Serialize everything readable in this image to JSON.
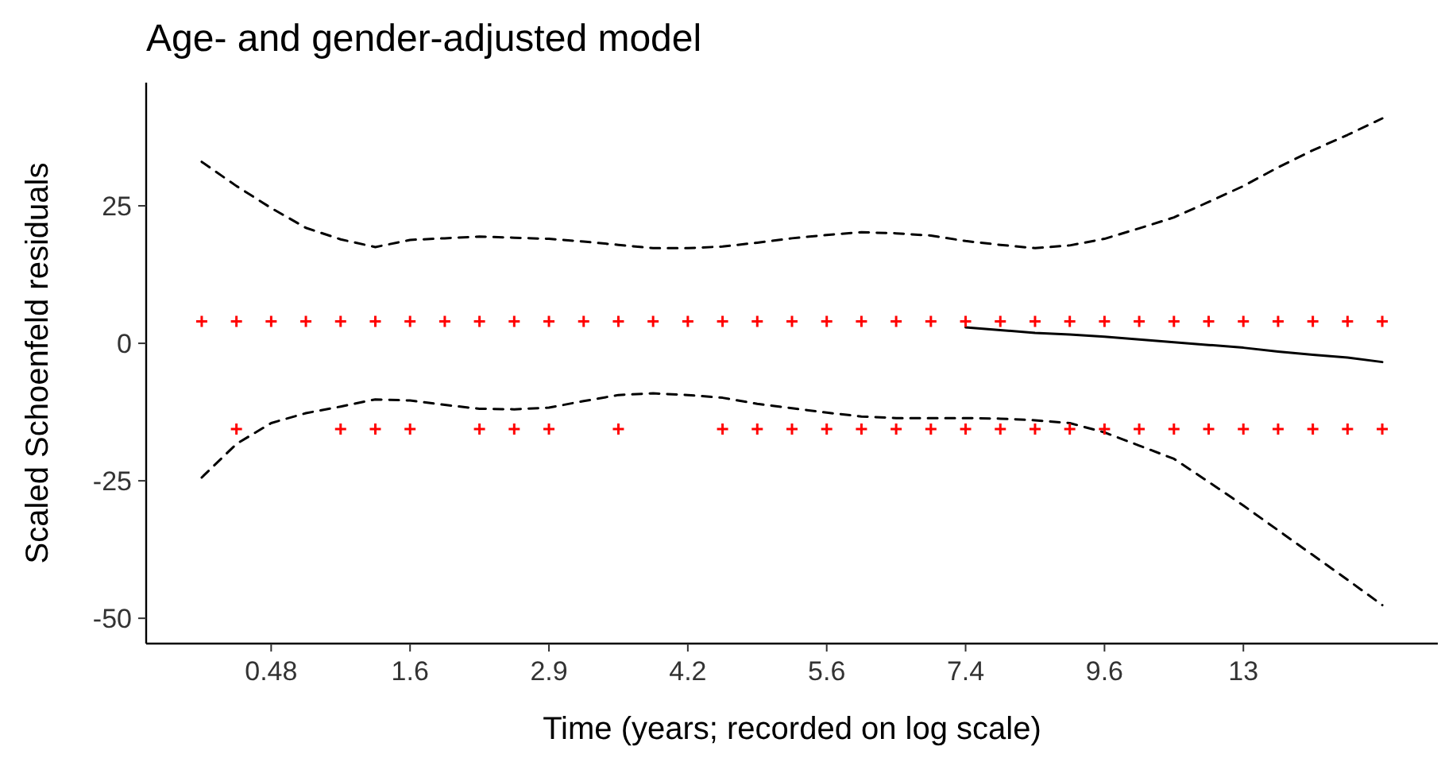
{
  "chart_data": {
    "type": "scatter",
    "title": "Age- and gender-adjusted model",
    "xlabel": "Time (years; recorded on log scale)",
    "ylabel": "Scaled Schoenfeld residuals",
    "categories": [
      null,
      null,
      "0.48",
      null,
      null,
      null,
      "1.6",
      null,
      null,
      null,
      "2.9",
      null,
      null,
      null,
      "4.2",
      null,
      null,
      null,
      "5.6",
      null,
      null,
      null,
      "7.4",
      null,
      null,
      null,
      "9.6",
      null,
      null,
      null,
      "13",
      null,
      null,
      null,
      null
    ],
    "ylim": [
      -54.6,
      47.4
    ],
    "yticks": [
      -50,
      -25,
      0,
      25
    ],
    "grid": false,
    "series": [
      {
        "type": "line",
        "color": "#000000",
        "line_style": "dashed",
        "values": [
          33,
          28.6,
          24.6,
          21,
          18.9,
          17.5,
          18.8,
          19.1,
          19.4,
          19.2,
          19,
          18.5,
          17.9,
          17.3,
          17.3,
          17.6,
          18.3,
          19.1,
          19.7,
          20.2,
          20,
          19.6,
          18.6,
          17.9,
          17.3,
          17.8,
          19,
          20.9,
          22.9,
          25.7,
          28.6,
          32,
          35.1,
          37.9,
          40.9
        ]
      },
      {
        "type": "line",
        "color": "#000000",
        "line_style": "dashed",
        "values": [
          -24.4,
          -18.3,
          -14.5,
          -12.7,
          -11.5,
          -10.2,
          -10.4,
          -11.2,
          -11.9,
          -12,
          -11.7,
          -10.5,
          -9.4,
          -9.1,
          -9.4,
          -9.9,
          -11,
          -11.8,
          -12.6,
          -13.3,
          -13.6,
          -13.6,
          -13.6,
          -13.7,
          -14,
          -14.5,
          -16.2,
          -18.6,
          -21,
          -25.2,
          -29.5,
          -34,
          -38.5,
          -43,
          -47.6
        ]
      },
      {
        "type": "line",
        "color": "#000000",
        "line_style": "solid",
        "values": [
          null,
          null,
          null,
          null,
          null,
          null,
          null,
          null,
          null,
          null,
          null,
          null,
          null,
          null,
          null,
          null,
          null,
          null,
          null,
          null,
          null,
          null,
          2.9,
          2.4,
          1.9,
          1.6,
          1.2,
          0.7,
          0.2,
          -0.3,
          -0.8,
          -1.5,
          -2.1,
          -2.6,
          -3.4
        ]
      },
      {
        "type": "scatter",
        "color": "#ff0000",
        "marker": "cross",
        "values": [
          4,
          4,
          4,
          4,
          4,
          4,
          4,
          4,
          4,
          4,
          4,
          4,
          4,
          4,
          4,
          4,
          4,
          4,
          4,
          4,
          4,
          4,
          4,
          4,
          4,
          4,
          4,
          4,
          4,
          4,
          4,
          4,
          4,
          4,
          4
        ]
      },
      {
        "type": "scatter",
        "color": "#ff0000",
        "marker": "cross",
        "values": [
          null,
          -15.6,
          null,
          null,
          -15.6,
          -15.6,
          -15.6,
          null,
          -15.6,
          -15.6,
          -15.6,
          null,
          -15.6,
          null,
          null,
          -15.6,
          -15.6,
          -15.6,
          -15.6,
          -15.6,
          -15.6,
          -15.6,
          -15.6,
          -15.6,
          -15.6,
          -15.6,
          -15.6,
          -15.6,
          -15.6,
          -15.6,
          -15.6,
          -15.6,
          -15.6,
          -15.6,
          -15.6
        ]
      }
    ]
  }
}
